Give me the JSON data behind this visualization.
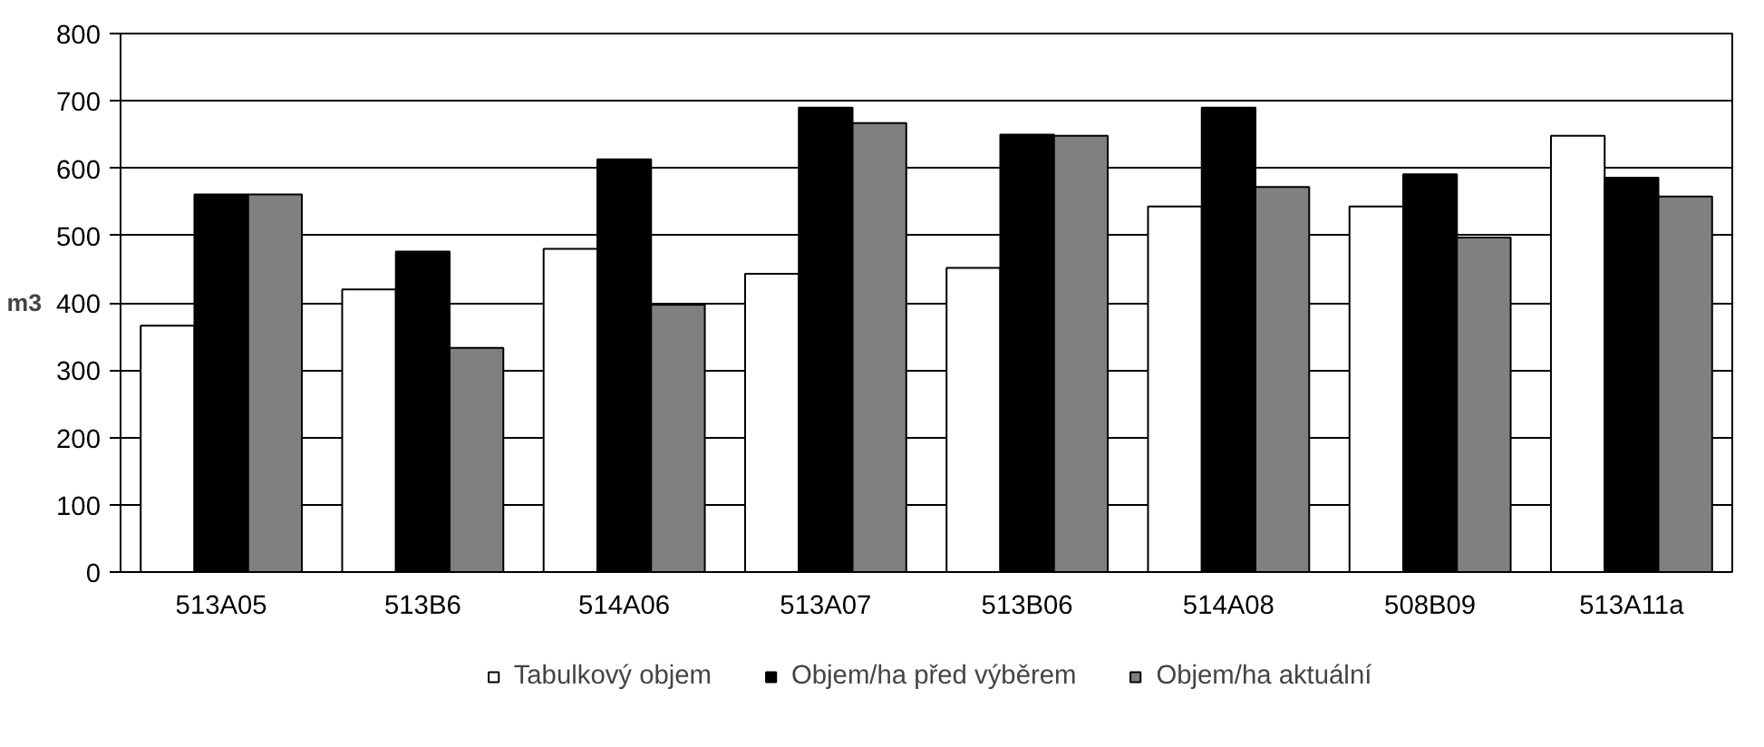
{
  "chart_data": {
    "type": "bar",
    "ylabel": "m3",
    "categories": [
      "513A05",
      "513B6",
      "514A06",
      "513A07",
      "513B06",
      "514A08",
      "508B09",
      "513A11a"
    ],
    "series": [
      {
        "name": "Tabulkový objem",
        "color": "#ffffff",
        "values": [
          366,
          420,
          480,
          443,
          452,
          543,
          543,
          648
        ]
      },
      {
        "name": "Objem/ha před výběrem",
        "color": "#000000",
        "values": [
          561,
          476,
          613,
          690,
          650,
          690,
          591,
          586
        ]
      },
      {
        "name": "Objem/ha aktuální",
        "color": "#808080",
        "values": [
          561,
          333,
          397,
          667,
          648,
          572,
          497,
          558
        ]
      }
    ],
    "ylim": [
      0,
      800
    ],
    "yticks": [
      0,
      100,
      200,
      300,
      400,
      500,
      600,
      700,
      800
    ],
    "grid": "y",
    "legend": "bottom"
  }
}
